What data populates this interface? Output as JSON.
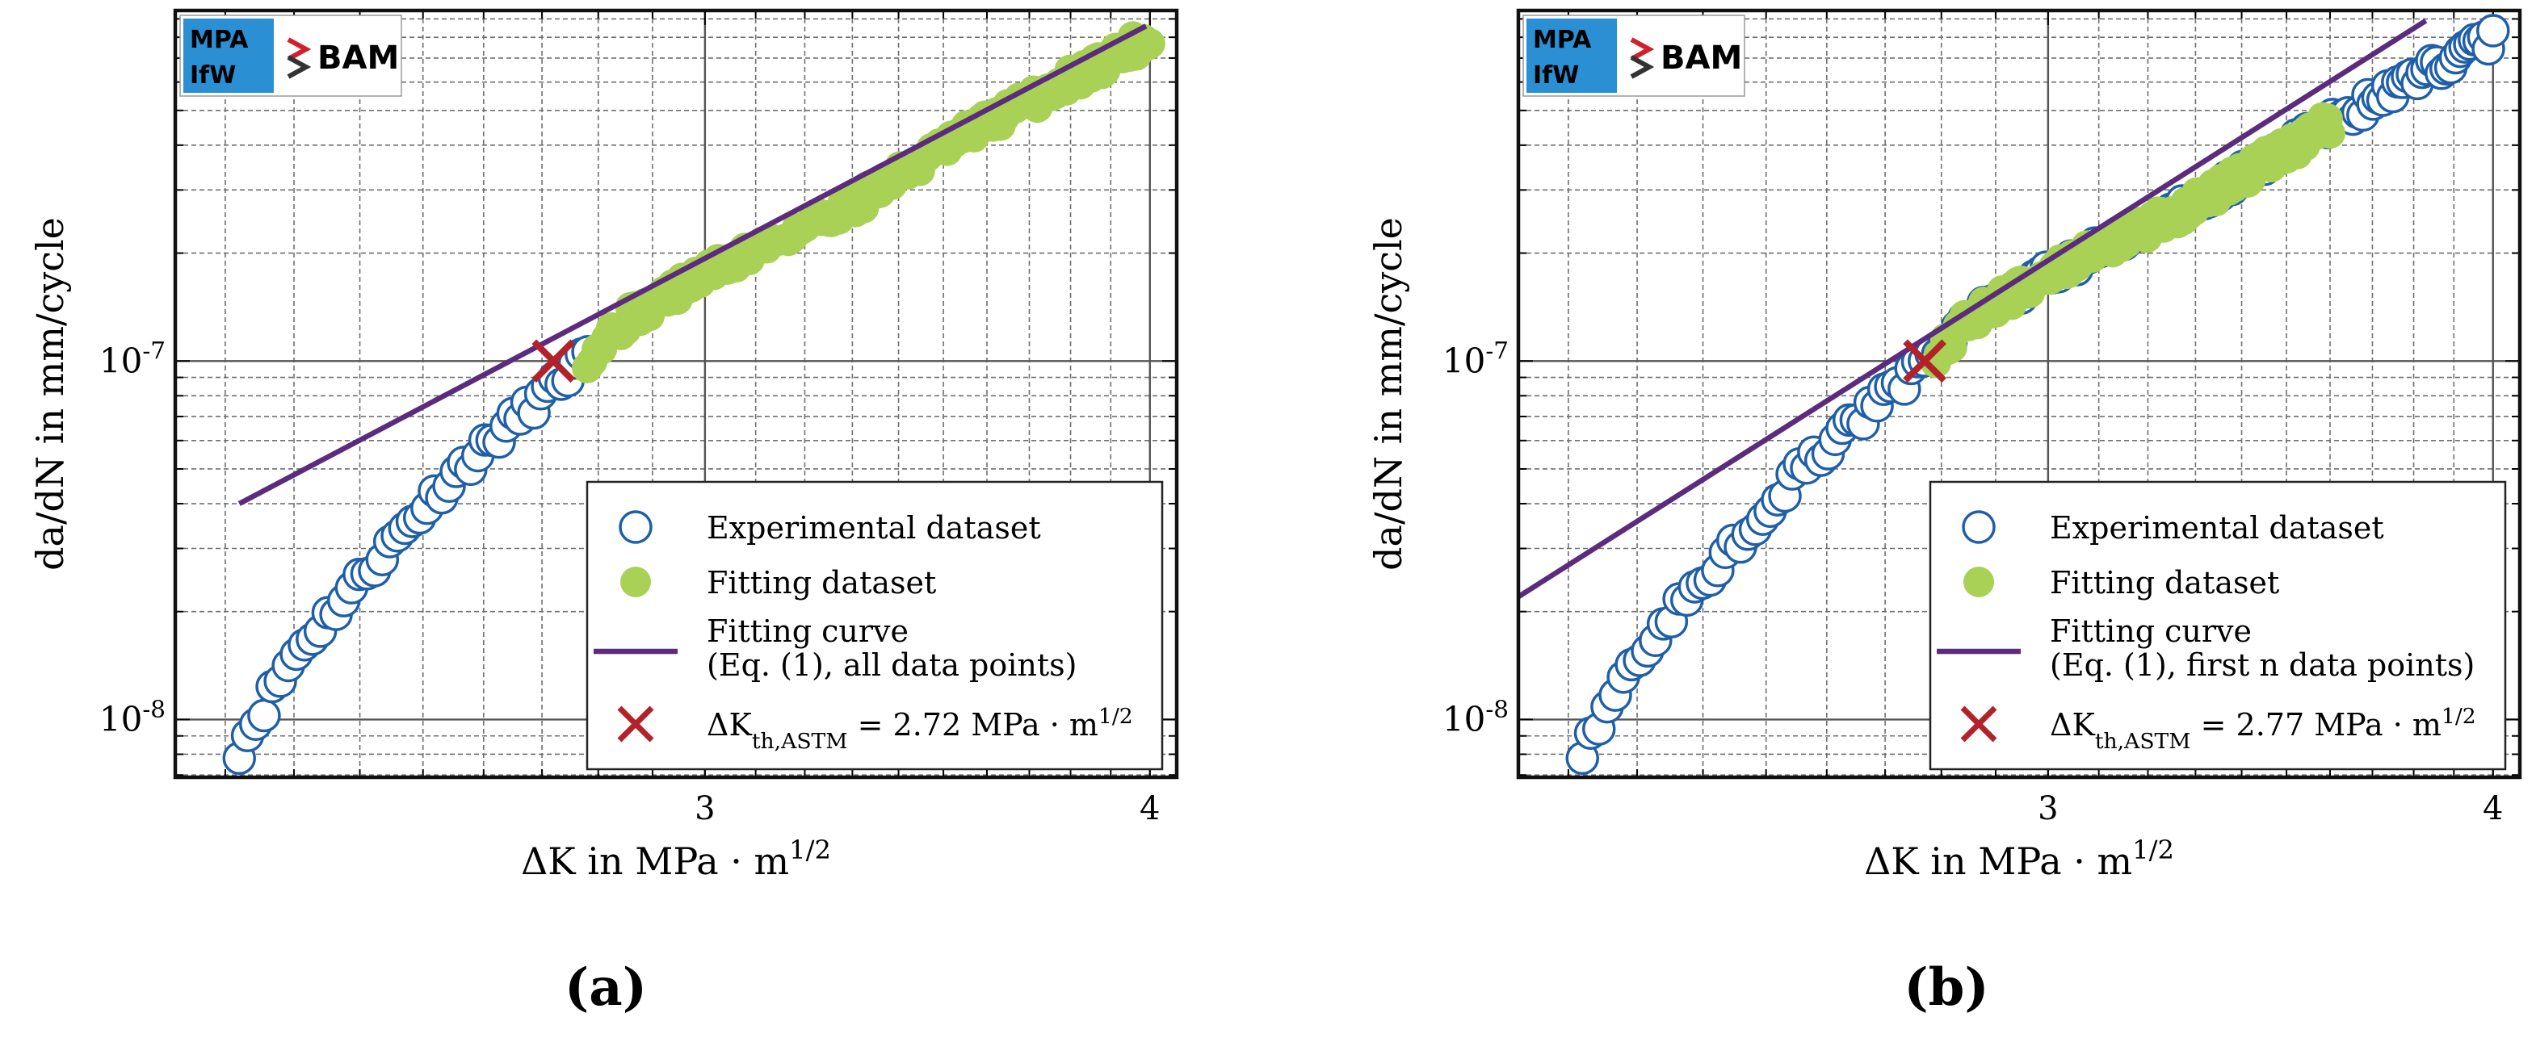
{
  "chart_data": [
    {
      "type": "scatter",
      "panel_label": "(a)",
      "xlabel": "ΔK in MPa · m^1/2",
      "ylabel": "da/dN in mm/cycle",
      "x_scale": "log",
      "y_scale": "log",
      "xlim": [
        2.13,
        4.07
      ],
      "ylim": [
        6.9e-09,
        9.5e-07
      ],
      "x_ticks": [
        {
          "value": 3,
          "label": "3"
        },
        {
          "value": 4,
          "label": "4"
        }
      ],
      "y_ticks": [
        {
          "value": 1e-08,
          "label": "10^-8"
        },
        {
          "value": 1e-07,
          "label": "10^-7"
        }
      ],
      "grid": true,
      "legend_position": "bottom-right",
      "logos": [
        "MPA IfW",
        "BAM"
      ],
      "series": [
        {
          "name": "Experimental dataset",
          "marker": "open-circle",
          "color": "#1f5fa8",
          "x_range": [
            2.22,
            4.0
          ],
          "y_range": [
            8.3e-09,
            8e-07
          ],
          "shown_up_to_x": 2.79
        },
        {
          "name": "Fitting dataset",
          "marker": "filled-circle",
          "color": "#a8d156",
          "x_range": [
            2.78,
            4.0
          ],
          "y_range": [
            1.05e-07,
            8e-07
          ]
        },
        {
          "name": "Fitting curve",
          "name_line2": "(Eq. (1), all data points)",
          "marker": "line",
          "color": "#5b2b7e",
          "points": [
            {
              "x": 2.22,
              "y": 4e-08
            },
            {
              "x": 3.99,
              "y": 8.6e-07
            }
          ]
        },
        {
          "name": "ΔK_th,ASTM = 2.72 MPa · m^1/2",
          "marker": "x-cross",
          "color": "#b2222a",
          "points": [
            {
              "x": 2.72,
              "y": 1e-07
            }
          ]
        }
      ]
    },
    {
      "type": "scatter",
      "panel_label": "(b)",
      "xlabel": "ΔK in MPa · m^1/2",
      "ylabel": "da/dN in mm/cycle",
      "x_scale": "log",
      "y_scale": "log",
      "xlim": [
        2.13,
        4.07
      ],
      "ylim": [
        6.9e-09,
        9.5e-07
      ],
      "x_ticks": [
        {
          "value": 3,
          "label": "3"
        },
        {
          "value": 4,
          "label": "4"
        }
      ],
      "y_ticks": [
        {
          "value": 1e-08,
          "label": "10^-8"
        },
        {
          "value": 1e-07,
          "label": "10^-7"
        }
      ],
      "grid": true,
      "legend_position": "bottom-right",
      "logos": [
        "MPA IfW",
        "BAM"
      ],
      "series": [
        {
          "name": "Experimental dataset",
          "marker": "open-circle",
          "color": "#1f5fa8",
          "x_range": [
            2.22,
            4.0
          ],
          "y_range": [
            8.3e-09,
            8e-07
          ],
          "shown_up_to_x": 4.0
        },
        {
          "name": "Fitting dataset",
          "marker": "filled-circle",
          "color": "#a8d156",
          "x_range": [
            2.79,
            3.6
          ],
          "y_range": [
            1.05e-07,
            5e-07
          ]
        },
        {
          "name": "Fitting curve",
          "name_line2": "(Eq. (1), first n data points)",
          "marker": "line",
          "color": "#5b2b7e",
          "points": [
            {
              "x": 2.13,
              "y": 2.2e-08
            },
            {
              "x": 3.83,
              "y": 8.9e-07
            }
          ]
        },
        {
          "name": "ΔK_th,ASTM = 2.77 MPa · m^1/2",
          "marker": "x-cross",
          "color": "#b2222a",
          "points": [
            {
              "x": 2.77,
              "y": 1e-07
            }
          ]
        }
      ]
    }
  ]
}
